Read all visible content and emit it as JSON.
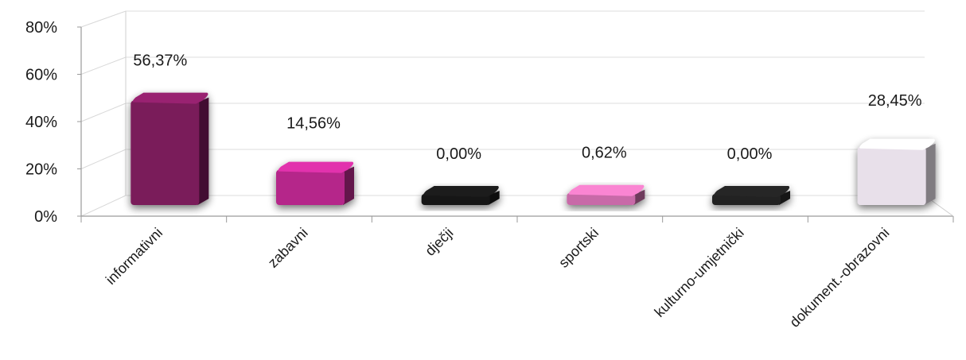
{
  "chart_data": {
    "type": "bar",
    "categories": [
      "informativni",
      "zabavni",
      "dječji",
      "sportski",
      "kulturno-umjetnički",
      "dokument.-obrazovni"
    ],
    "values": [
      56.37,
      14.56,
      0.0,
      0.62,
      0.0,
      28.45
    ],
    "data_labels": [
      "56,37%",
      "14,56%",
      "0,00%",
      "0,62%",
      "0,00%",
      "28,45%"
    ],
    "colors": [
      "#7a1a5a",
      "#b5288a",
      "#151515",
      "#c86aa8",
      "#202020",
      "#e8e0ea"
    ],
    "y_ticks": [
      "0%",
      "20%",
      "40%",
      "60%",
      "80%"
    ],
    "ylim": [
      0,
      80
    ],
    "grid": true,
    "style": "3d-column"
  }
}
